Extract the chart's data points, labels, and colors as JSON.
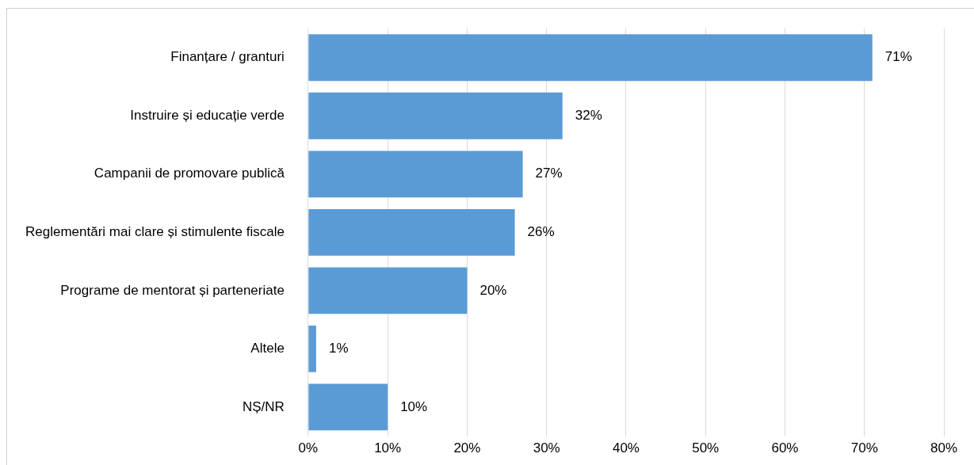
{
  "chart_data": {
    "type": "bar",
    "orientation": "horizontal",
    "categories": [
      "Finanțare / granturi",
      "Instruire și educație verde",
      "Campanii de promovare publică",
      "Reglementări mai clare și stimulente fiscale",
      "Programe de mentorat și parteneriate",
      "Altele",
      "NȘ/NR"
    ],
    "values": [
      71,
      32,
      27,
      26,
      20,
      1,
      10
    ],
    "value_labels": [
      "71%",
      "32%",
      "27%",
      "26%",
      "20%",
      "1%",
      "10%"
    ],
    "color": "#5b9bd5",
    "xlim": [
      0,
      80
    ],
    "xticks": [
      {
        "value": 0,
        "label": "0%"
      },
      {
        "value": 10,
        "label": "10%"
      },
      {
        "value": 20,
        "label": "20%"
      },
      {
        "value": 30,
        "label": "30%"
      },
      {
        "value": 40,
        "label": "40%"
      },
      {
        "value": 50,
        "label": "50%"
      },
      {
        "value": 60,
        "label": "60%"
      },
      {
        "value": 70,
        "label": "70%"
      },
      {
        "value": 80,
        "label": "80%"
      }
    ],
    "grid": "x",
    "legend": false
  }
}
